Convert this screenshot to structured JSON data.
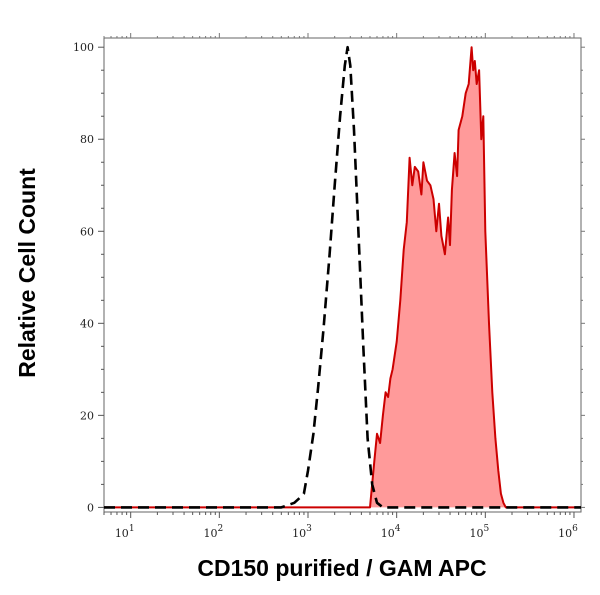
{
  "chart_data": {
    "type": "area",
    "title": "",
    "xlabel": "CD150 purified / GAM APC",
    "ylabel": "Relative Cell Count",
    "x_scale": "log",
    "xlim": [
      5,
      1200000
    ],
    "ylim": [
      -1,
      102
    ],
    "grid": false,
    "x_ticks": [
      {
        "value": 10,
        "exp": "1"
      },
      {
        "value": 100,
        "exp": "2"
      },
      {
        "value": 1000,
        "exp": "3"
      },
      {
        "value": 10000,
        "exp": "4"
      },
      {
        "value": 100000,
        "exp": "5"
      },
      {
        "value": 1000000,
        "exp": "6"
      }
    ],
    "y_ticks": [
      0,
      20,
      40,
      60,
      80,
      100
    ],
    "colors": {
      "stained_fill": "#ff9a9a",
      "stained_line": "#cc0000",
      "control_line": "#000000"
    },
    "series": [
      {
        "style": "dashed-line",
        "x": [
          5,
          500,
          700,
          800,
          900,
          1000,
          1150,
          1300,
          1500,
          1750,
          2000,
          2300,
          2600,
          2800,
          3000,
          3300,
          3700,
          4200,
          4700,
          5300,
          6000,
          7000,
          1200000
        ],
        "y": [
          0,
          0,
          1,
          2,
          3,
          8,
          16,
          26,
          39,
          55,
          70,
          85,
          96,
          100,
          96,
          82,
          60,
          35,
          15,
          5,
          1,
          0,
          0
        ]
      },
      {
        "style": "filled-area",
        "x": [
          5,
          5000,
          5600,
          6000,
          6500,
          7000,
          7500,
          8000,
          8500,
          9000,
          10000,
          11000,
          12000,
          13000,
          14000,
          15000,
          16000,
          17500,
          19000,
          20000,
          22000,
          24000,
          26000,
          28000,
          30000,
          32000,
          35000,
          38000,
          40000,
          42000,
          45000,
          48000,
          50000,
          55000,
          60000,
          65000,
          70000,
          73000,
          76000,
          80000,
          85000,
          90000,
          95000,
          100000,
          110000,
          120000,
          130000,
          140000,
          150000,
          160000,
          170000,
          180000,
          1200000
        ],
        "y": [
          0,
          0,
          10,
          16,
          14,
          20,
          25,
          24,
          28,
          30,
          36,
          45,
          56,
          62,
          76,
          70,
          74,
          73,
          68,
          75,
          71,
          70,
          67,
          60,
          66,
          59,
          55,
          63,
          57,
          69,
          77,
          72,
          82,
          85,
          90,
          92,
          100,
          95,
          97,
          92,
          95,
          80,
          85,
          60,
          40,
          25,
          15,
          8,
          3,
          1,
          0,
          0,
          0
        ]
      }
    ]
  }
}
